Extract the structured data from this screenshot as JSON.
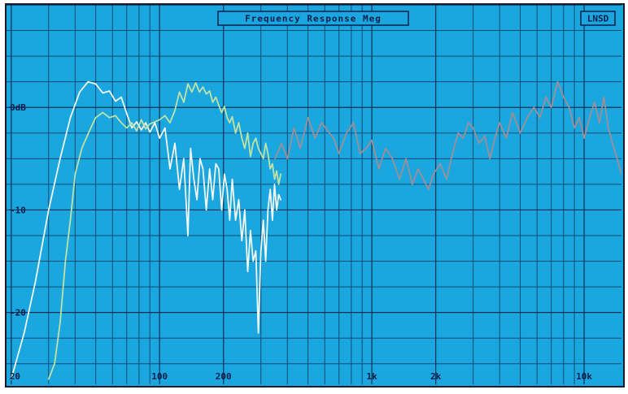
{
  "chart_data": {
    "type": "line",
    "title": "Frequency Response Meg",
    "tag": "LNSD",
    "xscale": "log",
    "xlim": [
      19,
      15000
    ],
    "ylim": [
      -27,
      10
    ],
    "x_tick_labels": [
      {
        "label": "20",
        "value": 20
      },
      {
        "label": "100",
        "value": 100
      },
      {
        "label": "200",
        "value": 200
      },
      {
        "label": "1k",
        "value": 1000
      },
      {
        "label": "2k",
        "value": 2000
      },
      {
        "label": "10k",
        "value": 10000
      }
    ],
    "y_tick_labels": [
      {
        "label": "0dB",
        "value": 0
      },
      {
        "label": "-10",
        "value": -10
      },
      {
        "label": "-20",
        "value": -20
      }
    ],
    "grid": true,
    "series": [
      {
        "color": "#f2f6f0",
        "x": [
          20,
          23,
          26,
          30,
          34,
          38,
          42,
          46,
          50,
          54,
          58,
          62,
          66,
          70,
          74,
          78,
          82,
          86,
          90,
          95,
          100,
          106,
          112,
          118,
          124,
          130,
          136,
          140,
          145,
          150,
          155,
          160,
          166,
          172,
          178,
          184,
          190,
          196,
          202,
          208,
          214,
          220,
          228,
          236,
          244,
          252,
          260,
          268,
          276,
          284,
          292,
          300,
          308,
          316,
          324,
          332,
          340,
          348,
          356,
          364,
          372
        ],
        "y": [
          -26.5,
          -22,
          -17,
          -10,
          -5,
          -1,
          1.5,
          2.5,
          2.3,
          1.4,
          1.6,
          0.6,
          1,
          -0.6,
          -2,
          -1.4,
          -2.2,
          -1.5,
          -2.4,
          -1.5,
          -3,
          -2,
          -6,
          -3.5,
          -8,
          -5,
          -12.5,
          -4,
          -7,
          -9,
          -5,
          -6,
          -10,
          -6,
          -9,
          -5.5,
          -6,
          -10,
          -6.5,
          -8,
          -11,
          -7,
          -11,
          -9,
          -13,
          -10,
          -16,
          -12,
          -15,
          -14,
          -22,
          -14,
          -11,
          -15,
          -10,
          -8,
          -11,
          -7.5,
          -10,
          -8.5,
          -9
        ]
      },
      {
        "color": "#bfe2a6",
        "x": [
          30,
          32,
          34,
          36,
          38,
          40,
          43,
          46,
          50,
          54,
          58,
          62,
          66,
          70,
          74,
          78,
          82,
          86,
          90,
          95,
          100,
          106,
          112,
          118,
          124,
          130,
          136,
          142,
          148,
          154,
          160,
          166,
          172,
          178,
          184,
          190,
          196,
          202,
          208,
          214,
          220,
          228,
          236,
          244,
          252,
          260,
          268,
          276,
          284,
          292,
          300,
          308,
          316,
          324,
          332,
          340,
          348,
          356,
          364,
          372
        ],
        "y": [
          -26.5,
          -25,
          -21,
          -15,
          -11,
          -6.5,
          -4,
          -2.6,
          -1,
          -0.5,
          -1,
          -0.8,
          -1.5,
          -2,
          -1.5,
          -2.3,
          -1.2,
          -2.1,
          -1.6,
          -1.4,
          -1.2,
          -0.8,
          -1.5,
          -0.3,
          1.5,
          0.5,
          2.3,
          1.5,
          2.4,
          1.5,
          2,
          1.3,
          1.6,
          0.5,
          1,
          0.2,
          -0.5,
          0.1,
          -1,
          -1.5,
          -0.9,
          -2.5,
          -1.5,
          -3,
          -4,
          -2.5,
          -4.8,
          -3.5,
          -3,
          -4,
          -4.5,
          -5,
          -3.5,
          -4.5,
          -6,
          -5.5,
          -7,
          -6.2,
          -7.5,
          -6.5
        ]
      },
      {
        "color": "#9e8f97",
        "x": [
          350,
          375,
          400,
          430,
          460,
          500,
          540,
          580,
          620,
          660,
          700,
          760,
          820,
          880,
          940,
          1000,
          1080,
          1160,
          1250,
          1350,
          1450,
          1550,
          1650,
          1750,
          1850,
          1950,
          2100,
          2250,
          2400,
          2550,
          2700,
          2850,
          3000,
          3200,
          3400,
          3600,
          3800,
          4000,
          4300,
          4600,
          5000,
          5400,
          5800,
          6200,
          6600,
          7000,
          7500,
          8000,
          8500,
          9000,
          9500,
          10000,
          10600,
          11200,
          11800,
          12400,
          13000,
          13600,
          14300,
          15000
        ],
        "y": [
          -5,
          -3.5,
          -5,
          -2,
          -4,
          -1,
          -3,
          -1.5,
          -2.3,
          -3,
          -4.5,
          -2.5,
          -1.5,
          -4.5,
          -4,
          -3.2,
          -6,
          -4,
          -5,
          -7,
          -5,
          -7.5,
          -6,
          -7,
          -8,
          -6.5,
          -5.5,
          -7,
          -4.5,
          -2.5,
          -3,
          -1.5,
          -2,
          -3.5,
          -2.8,
          -5,
          -3,
          -1.5,
          -3,
          -0.5,
          -2.5,
          -1,
          0,
          -1,
          1,
          0,
          2.5,
          1,
          0,
          -2,
          -1,
          -3,
          -1,
          0.5,
          -1.5,
          1,
          -2,
          -3.5,
          -5,
          -6.5
        ]
      }
    ]
  }
}
